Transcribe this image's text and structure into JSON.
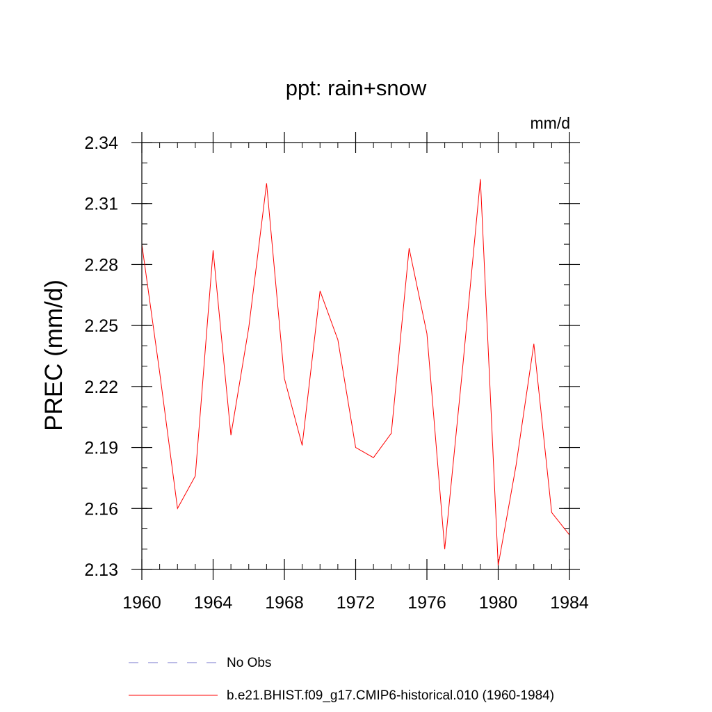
{
  "chart_data": {
    "type": "line",
    "title": "ppt: rain+snow",
    "units_label": "mm/d",
    "xlabel": "",
    "ylabel": "PREC  (mm/d)",
    "xlim": [
      1960,
      1984
    ],
    "ylim": [
      2.13,
      2.34
    ],
    "x_ticks": [
      1960,
      1964,
      1968,
      1972,
      1976,
      1980,
      1984
    ],
    "x_tick_labels": [
      "1960",
      "1964",
      "1968",
      "1972",
      "1976",
      "1980",
      "1984"
    ],
    "y_ticks": [
      2.13,
      2.16,
      2.19,
      2.22,
      2.25,
      2.28,
      2.31,
      2.34
    ],
    "y_tick_labels": [
      "2.13",
      "2.16",
      "2.19",
      "2.22",
      "2.25",
      "2.28",
      "2.31",
      "2.34"
    ],
    "x_minor_step": 1,
    "y_minor_step": 0.01,
    "grid": false,
    "legend_position": "bottom",
    "legend": [
      {
        "label": "No Obs",
        "color": "#7777cc",
        "style": "dashed"
      },
      {
        "label": "b.e21.BHIST.f09_g17.CMIP6-historical.010 (1960-1984)",
        "color": "#ff0000",
        "style": "solid"
      }
    ],
    "series": [
      {
        "name": "b.e21.BHIST.f09_g17.CMIP6-historical.010 (1960-1984)",
        "color": "#ff0000",
        "x": [
          1960,
          1961,
          1962,
          1963,
          1964,
          1965,
          1966,
          1967,
          1968,
          1969,
          1970,
          1971,
          1972,
          1973,
          1974,
          1975,
          1976,
          1977,
          1978,
          1979,
          1980,
          1981,
          1982,
          1983,
          1984
        ],
        "y": [
          2.29,
          2.227,
          2.16,
          2.176,
          2.287,
          2.196,
          2.249,
          2.32,
          2.224,
          2.191,
          2.267,
          2.243,
          2.19,
          2.185,
          2.197,
          2.288,
          2.246,
          2.14,
          2.229,
          2.322,
          2.132,
          2.181,
          2.241,
          2.158,
          2.147
        ]
      }
    ]
  }
}
